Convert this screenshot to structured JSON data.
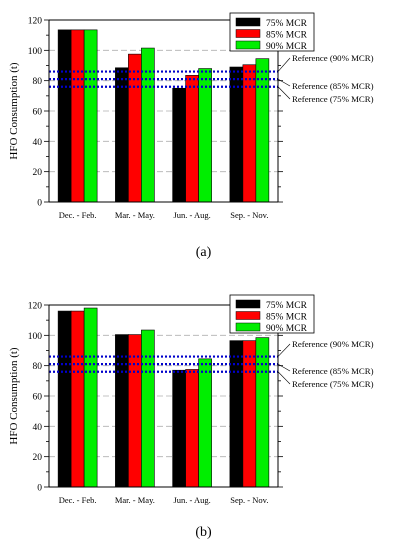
{
  "colors": {
    "75": "#000000",
    "85": "#ff0000",
    "90": "#00ee00",
    "reference": "#0000cc"
  },
  "chart_data": [
    {
      "type": "bar",
      "caption": "(a)",
      "categories": [
        "Dec. - Feb.",
        "Mar. - May.",
        "Jun. - Aug.",
        "Sep. - Nov."
      ],
      "series": [
        {
          "name": "75% MCR",
          "values": [
            113.5,
            88.5,
            75,
            89
          ]
        },
        {
          "name": "85% MCR",
          "values": [
            113.5,
            97.5,
            83.5,
            90.5
          ]
        },
        {
          "name": "90% MCR",
          "values": [
            113.5,
            101.5,
            88,
            94.5
          ]
        }
      ],
      "references": [
        {
          "label": "Reference (90% MCR)",
          "value": 86
        },
        {
          "label": "Reference (85% MCR)",
          "value": 81
        },
        {
          "label": "Reference (75% MCR)",
          "value": 76
        }
      ],
      "ylabel": "HFO Consumption (t)",
      "xlabel": "",
      "ylim": [
        0,
        120
      ],
      "yticks": [
        "0",
        "20",
        "40",
        "60",
        "80",
        "100",
        "120"
      ],
      "grid": "horizontal dashed",
      "legend": "top-right"
    },
    {
      "type": "bar",
      "caption": "(b)",
      "categories": [
        "Dec. - Feb.",
        "Mar. - May.",
        "Jun. - Aug.",
        "Sep. - Nov."
      ],
      "series": [
        {
          "name": "75% MCR",
          "values": [
            116,
            100.5,
            77,
            96.5
          ]
        },
        {
          "name": "85% MCR",
          "values": [
            116,
            100.5,
            77.5,
            96.5
          ]
        },
        {
          "name": "90% MCR",
          "values": [
            118,
            103.5,
            84.5,
            98.5
          ]
        }
      ],
      "references": [
        {
          "label": "Reference (90% MCR)",
          "value": 86
        },
        {
          "label": "Reference (85% MCR)",
          "value": 81
        },
        {
          "label": "Reference (75% MCR)",
          "value": 76
        }
      ],
      "ylabel": "HFO Consumption (t)",
      "xlabel": "",
      "ylim": [
        0,
        120
      ],
      "yticks": [
        "0",
        "20",
        "40",
        "60",
        "80",
        "100",
        "120"
      ],
      "grid": "horizontal dashed",
      "legend": "top-right"
    }
  ]
}
